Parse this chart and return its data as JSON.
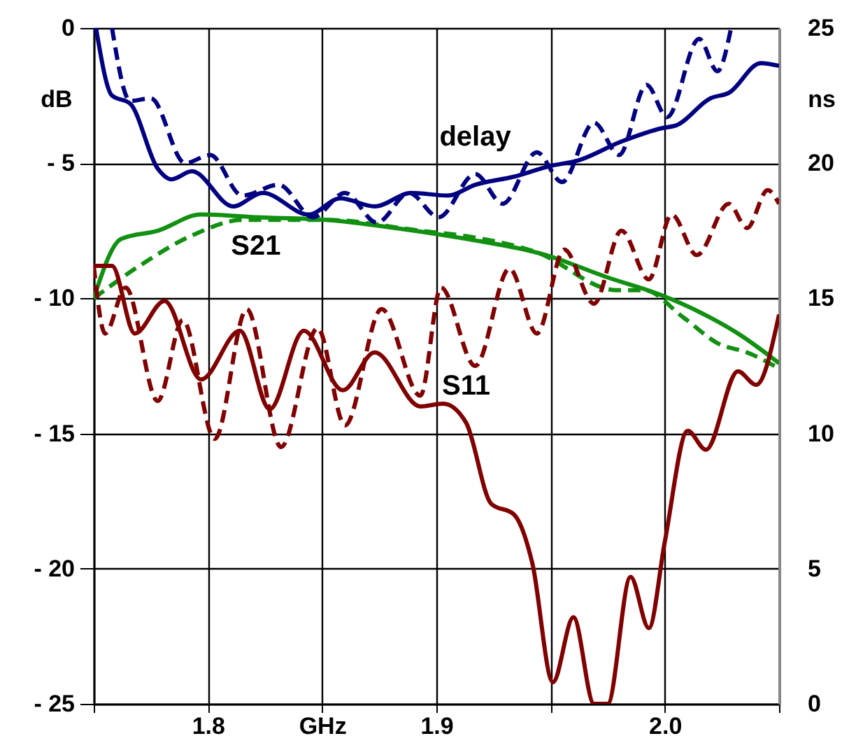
{
  "chart_data": {
    "type": "line",
    "ylabel": "dB",
    "y2label": "ns",
    "xlim": [
      1.75,
      2.05
    ],
    "xticks": [
      {
        "value": 1.75,
        "label": null
      },
      1.8,
      {
        "value": 1.85,
        "label": "GHz"
      },
      1.9,
      {
        "value": 1.95,
        "label": null
      },
      {
        "value": 2,
        "label": "2.0"
      },
      {
        "value": 2.05,
        "label": null
      }
    ],
    "ylim": [
      -25,
      0
    ],
    "yticks": [
      {
        "value": -25,
        "label": "- 25"
      },
      {
        "value": -20,
        "label": "- 20"
      },
      {
        "value": -15,
        "label": "- 15"
      },
      {
        "value": -10,
        "label": "- 10"
      },
      {
        "value": -5,
        "label": "- 5"
      },
      0
    ],
    "y2lim": [
      0,
      25
    ],
    "y2ticks": [
      0,
      5,
      10,
      15,
      20,
      25
    ],
    "grid": true,
    "series": [
      {
        "name": "delay",
        "color": "#000080",
        "axis": "y2",
        "line_style": "solid",
        "x": [
          1.751,
          1.758,
          1.766,
          1.778,
          1.784,
          1.793,
          1.811,
          1.824,
          1.844,
          1.858,
          1.873,
          1.889,
          1.905,
          1.917,
          1.934,
          1.95,
          1.962,
          1.981,
          1.999,
          2.005,
          2.02,
          2.028,
          2.042,
          2.05
        ],
        "values": [
          25,
          22.5,
          22.2,
          19.8,
          19.4,
          19.7,
          18.4,
          18.9,
          18.1,
          18.7,
          18.4,
          18.9,
          18.8,
          19.2,
          19.5,
          19.9,
          20.1,
          20.8,
          21.3,
          21.4,
          22.4,
          22.6,
          23.7,
          23.6
        ]
      },
      {
        "color": "#000080",
        "axis": "y2",
        "line_style": "dashed",
        "x": [
          1.758,
          1.766,
          1.775,
          1.79,
          1.801,
          1.815,
          1.831,
          1.846,
          1.86,
          1.874,
          1.888,
          1.901,
          1.917,
          1.929,
          1.944,
          1.955,
          1.969,
          1.98,
          1.992,
          2.001,
          2.015,
          2.023,
          2.029
        ],
        "values": [
          25,
          22.3,
          22.4,
          20.0,
          20.3,
          18.8,
          19.2,
          18.0,
          18.9,
          17.8,
          18.9,
          18.0,
          19.6,
          18.5,
          20.4,
          19.3,
          21.5,
          20.3,
          22.9,
          21.7,
          24.6,
          23.4,
          25
        ]
      },
      {
        "name": "S21",
        "color": "#119011",
        "line_style": "solid",
        "x": [
          1.75,
          1.762,
          1.778,
          1.797,
          1.821,
          1.852,
          1.882,
          1.913,
          1.948,
          1.974,
          1.999,
          2.015,
          2.032,
          2.05
        ],
        "values": [
          -10,
          -7.8,
          -7.5,
          -6.9,
          -7.0,
          -7.1,
          -7.4,
          -7.8,
          -8.4,
          -9.2,
          -9.9,
          -10.5,
          -11.3,
          -12.4
        ]
      },
      {
        "color": "#119011",
        "line_style": "dashed",
        "x": [
          1.75,
          1.77,
          1.795,
          1.815,
          1.852,
          1.893,
          1.913,
          1.944,
          1.979,
          1.991,
          2.008,
          2.024,
          2.036,
          2.05
        ],
        "values": [
          -10,
          -8.8,
          -7.6,
          -7.1,
          -7.1,
          -7.5,
          -7.7,
          -8.3,
          -9.7,
          -9.7,
          -10.7,
          -11.7,
          -12.0,
          -12.6
        ]
      },
      {
        "name": "S11",
        "color": "#800000",
        "line_style": "solid",
        "x": [
          1.75,
          1.758,
          1.768,
          1.781,
          1.797,
          1.814,
          1.827,
          1.842,
          1.859,
          1.873,
          1.893,
          1.903,
          1.913,
          1.924,
          1.934,
          1.942,
          1.951,
          1.96,
          1.969,
          1.975,
          1.985,
          1.993,
          2.0,
          2.01,
          2.018,
          2.032,
          2.04,
          2.05
        ],
        "values": [
          -8.8,
          -8.8,
          -11.3,
          -10.1,
          -13.0,
          -11.2,
          -14.1,
          -11.2,
          -13.4,
          -12.0,
          -14.0,
          -13.9,
          -14.6,
          -17.6,
          -18.0,
          -19.8,
          -24.2,
          -21.8,
          -25,
          -25,
          -20.3,
          -22.2,
          -19.0,
          -14.9,
          -15.6,
          -12.7,
          -13.2,
          -10.6
        ]
      },
      {
        "color": "#800000",
        "line_style": "dashed",
        "x": [
          1.75,
          1.755,
          1.764,
          1.778,
          1.789,
          1.803,
          1.817,
          1.832,
          1.848,
          1.86,
          1.876,
          1.893,
          1.902,
          1.917,
          1.932,
          1.944,
          1.956,
          1.969,
          1.981,
          1.993,
          2.003,
          2.014,
          2.028,
          2.036,
          2.045,
          2.05
        ],
        "values": [
          -8.8,
          -11.3,
          -9.6,
          -13.8,
          -10.8,
          -15.2,
          -10.4,
          -15.5,
          -11.1,
          -14.7,
          -10.4,
          -13.6,
          -9.6,
          -12.5,
          -8.9,
          -11.3,
          -8.2,
          -10.2,
          -7.5,
          -9.3,
          -6.9,
          -8.4,
          -6.5,
          -7.4,
          -6.0,
          -6.5
        ]
      }
    ]
  }
}
